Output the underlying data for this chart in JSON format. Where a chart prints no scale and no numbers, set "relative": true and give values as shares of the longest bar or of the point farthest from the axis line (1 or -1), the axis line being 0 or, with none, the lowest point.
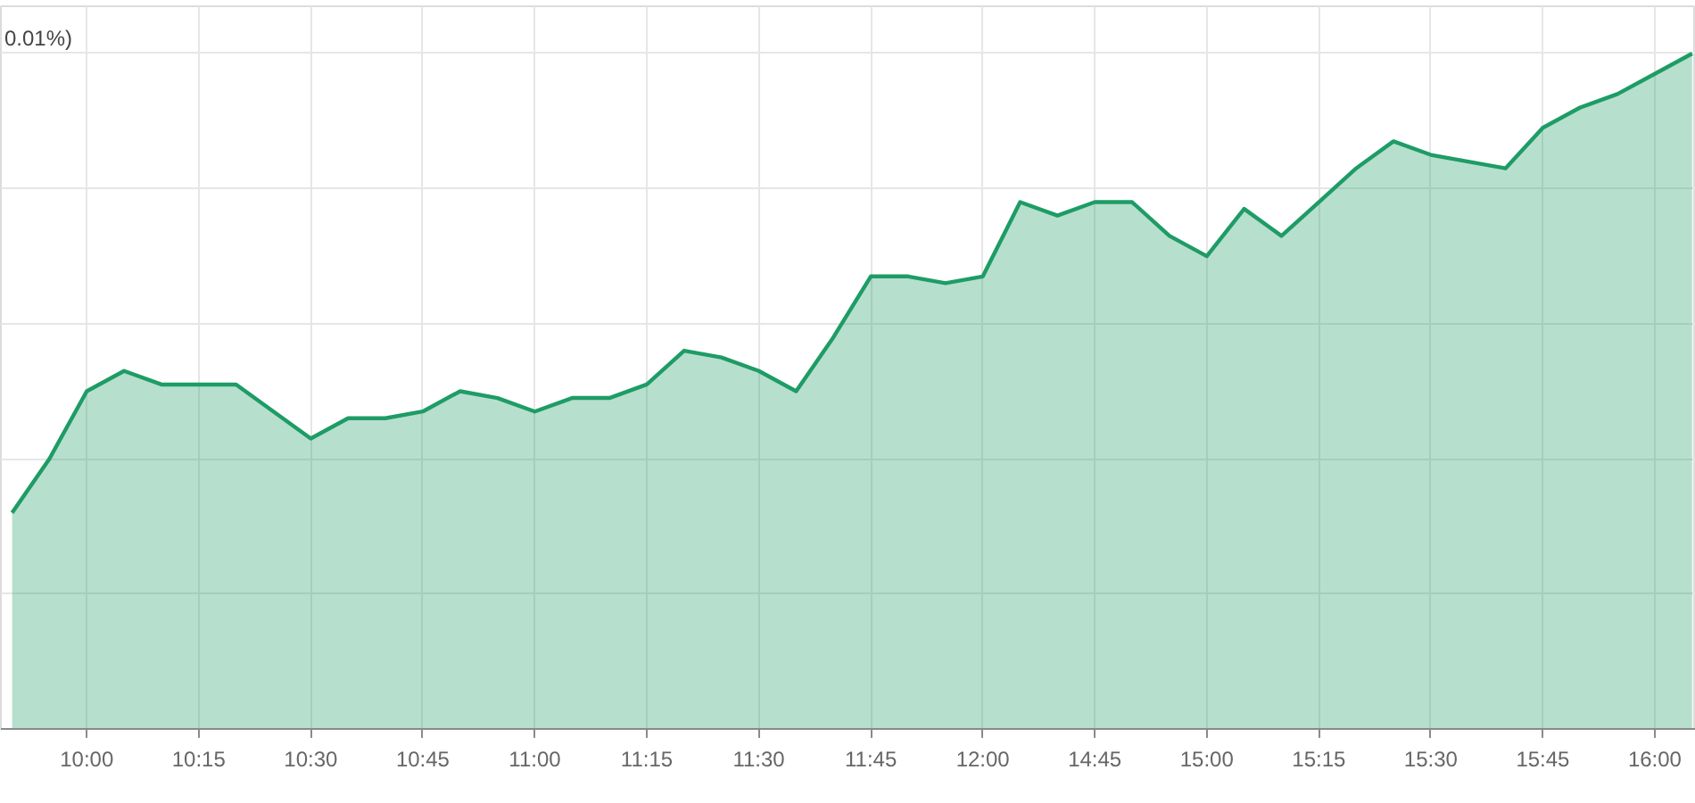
{
  "chart_data": {
    "type": "area",
    "relative": true,
    "color": "#1e9c66",
    "grid": true,
    "annotations": [
      "0.01%)"
    ],
    "categories": [
      null,
      null,
      "10:00",
      null,
      null,
      "10:15",
      null,
      null,
      "10:30",
      null,
      null,
      "10:45",
      null,
      null,
      "11:00",
      null,
      null,
      "11:15",
      null,
      null,
      "11:30",
      null,
      null,
      "11:45",
      null,
      null,
      "12:00",
      null,
      null,
      "14:45",
      null,
      null,
      "15:00",
      null,
      null,
      "15:15",
      null,
      null,
      "15:30",
      null,
      null,
      "15:45",
      null,
      null,
      "16:00",
      null
    ],
    "values": [
      0.32,
      0.4,
      0.5,
      0.53,
      0.51,
      0.51,
      0.51,
      0.47,
      0.43,
      0.46,
      0.46,
      0.47,
      0.5,
      0.49,
      0.47,
      0.49,
      0.49,
      0.51,
      0.56,
      0.55,
      0.53,
      0.5,
      0.58,
      0.67,
      0.67,
      0.66,
      0.67,
      0.78,
      0.76,
      0.78,
      0.78,
      0.73,
      0.7,
      0.77,
      0.73,
      0.78,
      0.83,
      0.87,
      0.85,
      0.84,
      0.83,
      0.89,
      0.92,
      0.94,
      0.97,
      1.0
    ]
  }
}
